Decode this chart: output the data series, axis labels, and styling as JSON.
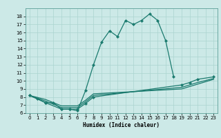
{
  "xlabel": "Humidex (Indice chaleur)",
  "background_color": "#cce9e7",
  "grid_color": "#aad4d0",
  "line_color": "#1a7a6e",
  "xlim": [
    -0.5,
    23.5
  ],
  "ylim": [
    6,
    19
  ],
  "xticks": [
    0,
    1,
    2,
    3,
    4,
    5,
    6,
    7,
    8,
    9,
    10,
    11,
    12,
    13,
    14,
    15,
    16,
    17,
    18,
    19,
    20,
    21,
    22,
    23
  ],
  "yticks": [
    6,
    7,
    8,
    9,
    10,
    11,
    12,
    13,
    14,
    15,
    16,
    17,
    18
  ],
  "line1_x": [
    0,
    1,
    2,
    3,
    4,
    5,
    6,
    7,
    8,
    9,
    10,
    11,
    12,
    13,
    14,
    15,
    16,
    17,
    18
  ],
  "line1_y": [
    8.2,
    7.8,
    7.3,
    7.3,
    6.5,
    6.5,
    6.3,
    8.8,
    12.0,
    14.8,
    16.2,
    15.5,
    17.5,
    17.0,
    17.5,
    18.3,
    17.5,
    15.0,
    10.5
  ],
  "line2_x": [
    0,
    2,
    4,
    5,
    6,
    7,
    8,
    19,
    20,
    21,
    23
  ],
  "line2_y": [
    8.2,
    7.3,
    6.5,
    6.5,
    6.5,
    7.2,
    8.0,
    9.5,
    9.8,
    10.2,
    10.5
  ],
  "line3_x": [
    0,
    2,
    4,
    5,
    6,
    7,
    8,
    19,
    20,
    21,
    23
  ],
  "line3_y": [
    8.2,
    7.5,
    6.7,
    6.7,
    6.7,
    7.4,
    8.2,
    9.2,
    9.5,
    9.8,
    10.3
  ],
  "line4_x": [
    0,
    2,
    4,
    5,
    6,
    7,
    8,
    19,
    20,
    21,
    23
  ],
  "line4_y": [
    8.2,
    7.7,
    6.9,
    6.9,
    6.9,
    7.6,
    8.4,
    9.0,
    9.3,
    9.6,
    10.2
  ]
}
